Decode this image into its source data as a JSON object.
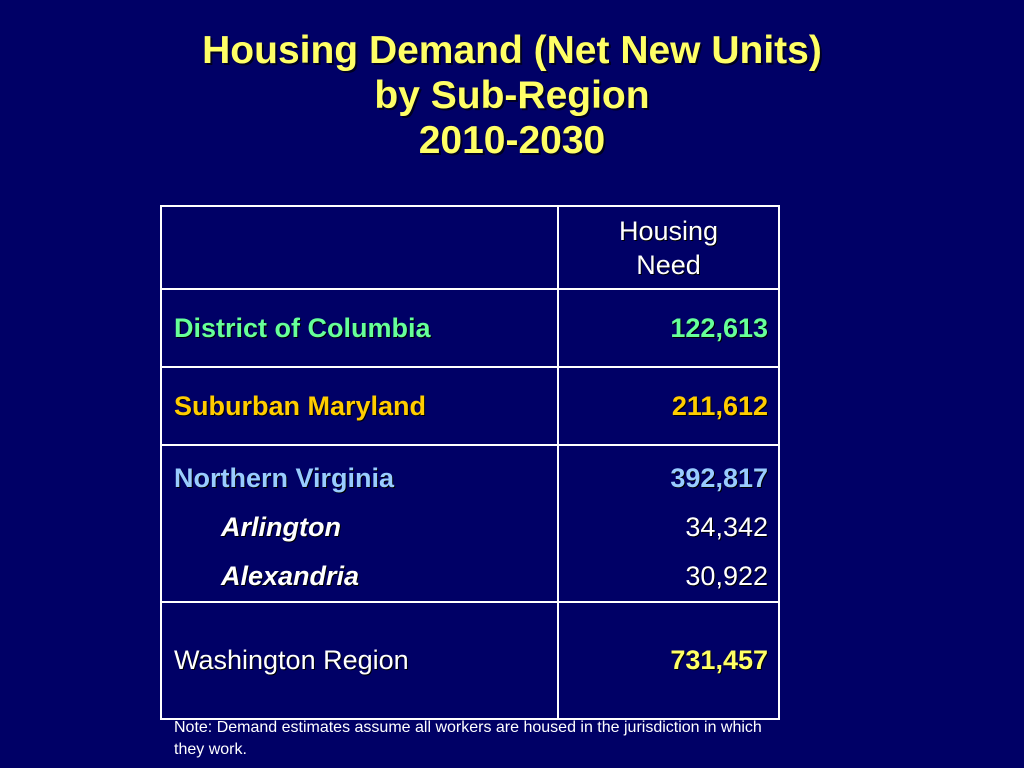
{
  "title": {
    "line1": "Housing Demand (Net New Units)",
    "line2": "by Sub-Region",
    "line3": "2010-2030"
  },
  "table": {
    "header": {
      "col1": "",
      "col2_line1": "Housing",
      "col2_line2": "Need"
    },
    "rows": [
      {
        "label": "District of Columbia",
        "value": "122,613"
      },
      {
        "label": "Suburban Maryland",
        "value": "211,612"
      },
      {
        "label": "Northern Virginia",
        "value": "392,817",
        "sub": [
          {
            "label": "Arlington",
            "value": "34,342"
          },
          {
            "label": "Alexandria",
            "value": "30,922"
          }
        ]
      },
      {
        "label": "Washington Region",
        "value": "731,457"
      }
    ]
  },
  "note": "Note: Demand estimates assume all workers are housed in the jurisdiction in which they work.",
  "colors": {
    "background": "#000066",
    "title": "#ffff66",
    "dc": "#66ff99",
    "maryland": "#ffcc00",
    "virginia": "#99ccff",
    "region_value": "#ffff66"
  }
}
